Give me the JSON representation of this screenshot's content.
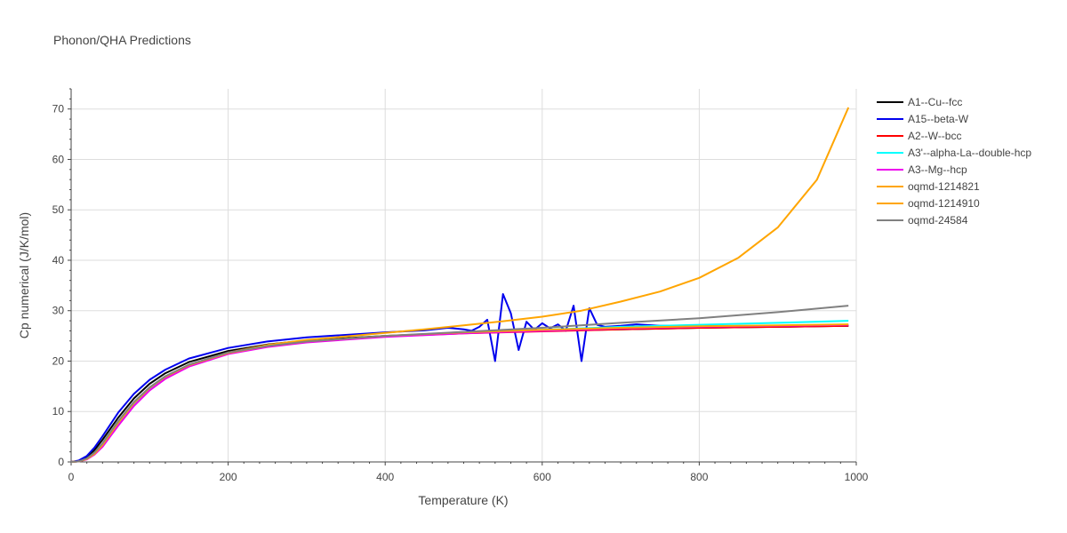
{
  "chart_data": {
    "type": "line",
    "title": "Phonon/QHA Predictions",
    "xlabel": "Temperature (K)",
    "ylabel": "Cp numerical (J/K/mol)",
    "xlim": [
      0,
      1000
    ],
    "ylim": [
      0,
      74
    ],
    "xticks": [
      0,
      200,
      400,
      600,
      800,
      1000
    ],
    "yticks": [
      0,
      10,
      20,
      30,
      40,
      50,
      60,
      70
    ],
    "grid": true,
    "legend_position": "right",
    "series": [
      {
        "name": "A1--Cu--fcc",
        "color": "#000000",
        "x": [
          0,
          10,
          20,
          30,
          40,
          60,
          80,
          100,
          120,
          150,
          200,
          250,
          300,
          400,
          500,
          600,
          700,
          800,
          900,
          990
        ],
        "y": [
          0,
          0.2,
          0.9,
          2.4,
          4.4,
          8.8,
          12.6,
          15.5,
          17.6,
          19.8,
          22.0,
          23.3,
          24.1,
          25.0,
          25.6,
          26.0,
          26.3,
          26.6,
          26.8,
          27.0
        ]
      },
      {
        "name": "A15--beta-W",
        "color": "#0000ee",
        "x": [
          0,
          10,
          20,
          30,
          40,
          60,
          80,
          100,
          120,
          150,
          200,
          250,
          300,
          400,
          450,
          480,
          500,
          510,
          520,
          530,
          540,
          550,
          560,
          570,
          580,
          590,
          600,
          610,
          620,
          630,
          640,
          650,
          660,
          670,
          680,
          700,
          720,
          750,
          800,
          850,
          900,
          950,
          990
        ],
        "y": [
          0,
          0.3,
          1.2,
          2.9,
          5.1,
          9.8,
          13.5,
          16.3,
          18.3,
          20.5,
          22.6,
          23.9,
          24.7,
          25.7,
          26.1,
          26.6,
          26.3,
          26.0,
          26.8,
          28.2,
          20.0,
          33.3,
          29.5,
          22.2,
          27.8,
          26.2,
          27.5,
          26.5,
          27.3,
          26.0,
          31.0,
          20.0,
          30.5,
          27.2,
          26.8,
          27.0,
          27.3,
          27.0,
          27.0,
          26.9,
          27.0,
          27.0,
          27.0
        ]
      },
      {
        "name": "A2--W--bcc",
        "color": "#ff0000",
        "x": [
          0,
          10,
          20,
          30,
          40,
          60,
          80,
          100,
          120,
          150,
          200,
          250,
          300,
          400,
          500,
          600,
          700,
          800,
          900,
          990
        ],
        "y": [
          0,
          0.1,
          0.6,
          1.7,
          3.4,
          7.8,
          11.7,
          14.7,
          16.9,
          19.2,
          21.6,
          22.9,
          23.8,
          24.9,
          25.5,
          25.9,
          26.3,
          26.6,
          26.8,
          27.0
        ]
      },
      {
        "name": "A3'--alpha-La--double-hcp",
        "color": "#00ffff",
        "x": [
          0,
          10,
          20,
          30,
          40,
          60,
          80,
          100,
          120,
          150,
          200,
          250,
          300,
          400,
          500,
          600,
          700,
          800,
          900,
          990
        ],
        "y": [
          0,
          0.1,
          0.6,
          1.7,
          3.3,
          7.6,
          11.5,
          14.5,
          16.7,
          19.0,
          21.5,
          22.9,
          23.8,
          24.9,
          25.6,
          26.2,
          26.8,
          27.2,
          27.6,
          28.0
        ]
      },
      {
        "name": "A3--Mg--hcp",
        "color": "#ee00ee",
        "x": [
          0,
          10,
          20,
          30,
          40,
          60,
          80,
          100,
          120,
          150,
          200,
          250,
          300,
          400,
          500,
          600,
          700,
          800,
          900,
          990
        ],
        "y": [
          0,
          0.1,
          0.5,
          1.5,
          3.0,
          7.2,
          11.1,
          14.2,
          16.5,
          18.9,
          21.4,
          22.8,
          23.7,
          24.8,
          25.5,
          26.0,
          26.5,
          26.8,
          27.0,
          27.2
        ]
      },
      {
        "name": "oqmd-1214821",
        "color": "#ffa500",
        "x": [
          0,
          10,
          20,
          30,
          40,
          60,
          80,
          100,
          120,
          150,
          200,
          250,
          300,
          400,
          500,
          600,
          700,
          800,
          900,
          990
        ],
        "y": [
          0,
          0.1,
          0.6,
          1.7,
          3.4,
          7.8,
          11.7,
          14.7,
          16.9,
          19.2,
          21.6,
          23.0,
          23.9,
          25.0,
          25.7,
          26.2,
          26.6,
          26.9,
          27.1,
          27.3
        ]
      },
      {
        "name": "oqmd-1214910",
        "color": "#ffa500",
        "x": [
          0,
          10,
          20,
          30,
          40,
          60,
          80,
          100,
          120,
          150,
          200,
          250,
          300,
          350,
          400,
          450,
          500,
          550,
          600,
          650,
          700,
          750,
          800,
          850,
          900,
          950,
          990
        ],
        "y": [
          0,
          0.1,
          0.6,
          1.7,
          3.4,
          7.8,
          11.7,
          14.7,
          16.9,
          19.2,
          21.7,
          23.2,
          24.2,
          24.9,
          25.6,
          26.3,
          27.1,
          27.9,
          28.8,
          30.0,
          31.8,
          33.8,
          36.5,
          40.5,
          46.5,
          56.0,
          70.3
        ]
      },
      {
        "name": "oqmd-24584",
        "color": "#808080",
        "x": [
          0,
          10,
          20,
          30,
          40,
          60,
          80,
          100,
          120,
          150,
          200,
          250,
          300,
          400,
          500,
          600,
          700,
          800,
          900,
          990
        ],
        "y": [
          0,
          0.1,
          0.7,
          1.9,
          3.7,
          8.1,
          11.9,
          14.8,
          17.0,
          19.3,
          21.7,
          23.0,
          23.9,
          25.0,
          25.8,
          26.6,
          27.6,
          28.5,
          29.7,
          31.0
        ]
      }
    ]
  }
}
